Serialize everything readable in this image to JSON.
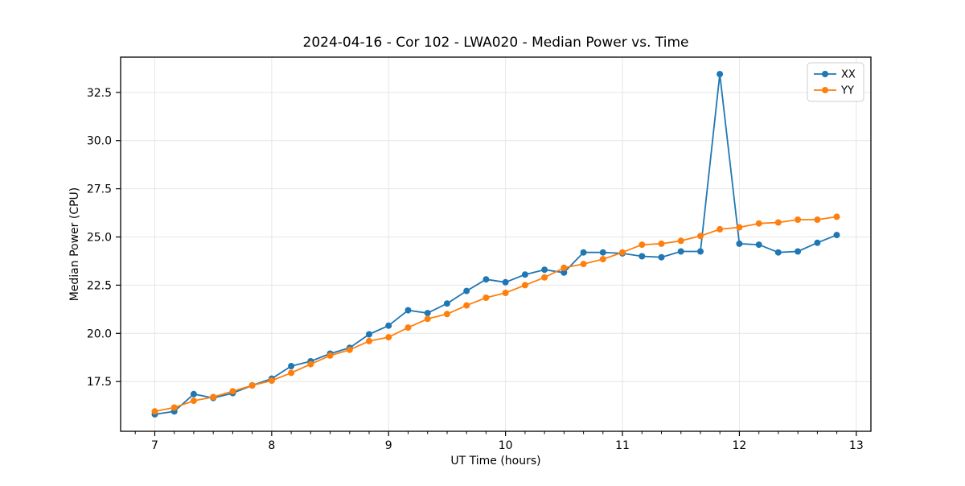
{
  "figure": {
    "background": "#ffffff"
  },
  "chart_data": {
    "type": "line",
    "title": "2024-04-16 - Cor 102 - LWA020 - Median Power vs. Time",
    "xlabel": "UT Time (hours)",
    "ylabel": "Median Power (CPU)",
    "xlim": [
      6.708,
      13.125
    ],
    "ylim": [
      14.92,
      34.33
    ],
    "x_ticks": [
      7,
      8,
      9,
      10,
      11,
      12,
      13
    ],
    "x_tick_labels": [
      "7",
      "8",
      "9",
      "10",
      "11",
      "12",
      "13"
    ],
    "x_minor_tick_step": 0.16667,
    "y_ticks": [
      17.5,
      20.0,
      22.5,
      25.0,
      27.5,
      30.0,
      32.5
    ],
    "y_tick_labels": [
      "17.5",
      "20.0",
      "22.5",
      "25.0",
      "27.5",
      "30.0",
      "32.5"
    ],
    "grid": true,
    "grid_color": "#e6e6e6",
    "legend_position": "upper right",
    "x": [
      7.0,
      7.167,
      7.333,
      7.5,
      7.667,
      7.833,
      8.0,
      8.167,
      8.333,
      8.5,
      8.667,
      8.833,
      9.0,
      9.167,
      9.333,
      9.5,
      9.667,
      9.833,
      10.0,
      10.167,
      10.333,
      10.5,
      10.667,
      10.833,
      11.0,
      11.167,
      11.333,
      11.5,
      11.667,
      11.833,
      12.0,
      12.167,
      12.333,
      12.5,
      12.667,
      12.833
    ],
    "series": [
      {
        "name": "XX",
        "color": "#1f77b4",
        "values": [
          15.8,
          15.95,
          16.85,
          16.65,
          16.9,
          17.3,
          17.65,
          18.3,
          18.55,
          18.95,
          19.25,
          19.95,
          20.4,
          21.2,
          21.05,
          21.55,
          22.2,
          22.8,
          22.65,
          23.05,
          23.3,
          23.15,
          24.2,
          24.2,
          24.15,
          24.0,
          23.95,
          24.25,
          24.25,
          33.45,
          24.65,
          24.6,
          24.2,
          24.25,
          24.7,
          25.1
        ]
      },
      {
        "name": "YY",
        "color": "#ff7f0e",
        "values": [
          15.95,
          16.15,
          16.5,
          16.7,
          17.0,
          17.3,
          17.55,
          17.95,
          18.4,
          18.85,
          19.15,
          19.6,
          19.8,
          20.3,
          20.75,
          21.0,
          21.45,
          21.85,
          22.1,
          22.5,
          22.9,
          23.4,
          23.6,
          23.85,
          24.2,
          24.6,
          24.65,
          24.8,
          25.05,
          25.4,
          25.5,
          25.7,
          25.75,
          25.9,
          25.9,
          26.05
        ]
      }
    ]
  }
}
